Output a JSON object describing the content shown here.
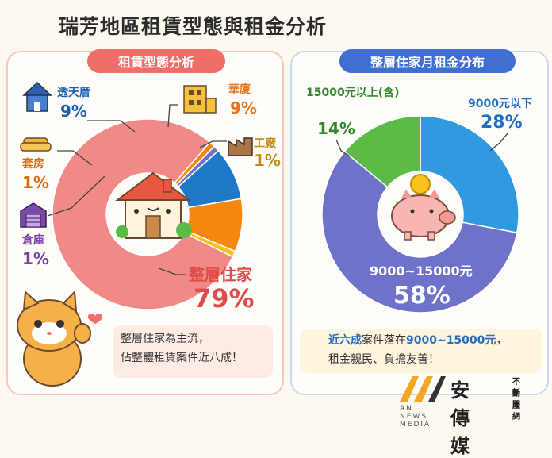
{
  "title": "瑞芳地區租賃型態與租金分析",
  "left_panel": {
    "heading": "租賃型態分析",
    "note_line1": "整層住家為主流，",
    "note_line2": "佔整體租賃案件近八成！"
  },
  "right_panel": {
    "heading": "整層住家月租金分布",
    "note_line1_hl": "近六成",
    "note_line1_mid": "案件落在",
    "note_line1_hl2": "9000~15000元",
    "note_line1_end": "，",
    "note_line2": "租金親民、負擔友善！"
  },
  "colors": {
    "red": "#f08a86",
    "blue": "#1f78c8",
    "orange": "#f5870f",
    "yellow": "#f7c21c",
    "purple": "#6e72c8",
    "lightblue": "#2f9ae0",
    "green": "#5cba47"
  },
  "logo": {
    "name": "安傳媒",
    "sub1": "不動產",
    "sub2": "新聞網",
    "en": "AN NEWS MEDIA"
  },
  "chart_data": [
    {
      "type": "pie",
      "title": "租賃型態分析",
      "slices": [
        {
          "label": "整層住家",
          "value": 79,
          "text": "79%"
        },
        {
          "label": "套房",
          "value": 1,
          "text": "1%"
        },
        {
          "label": "倉庫",
          "value": 1,
          "text": "1%"
        },
        {
          "label": "透天厝",
          "value": 9,
          "text": "9%"
        },
        {
          "label": "華廈",
          "value": 9,
          "text": "9%"
        },
        {
          "label": "工廠",
          "value": 1,
          "text": "1%"
        }
      ]
    },
    {
      "type": "pie",
      "title": "整層住家月租金分布",
      "slices": [
        {
          "label": "9000元以下",
          "value": 28,
          "text": "28%"
        },
        {
          "label": "9000~15000元",
          "value": 58,
          "text": "58%"
        },
        {
          "label": "15000元以上(含)",
          "value": 14,
          "text": "14%"
        }
      ]
    }
  ]
}
